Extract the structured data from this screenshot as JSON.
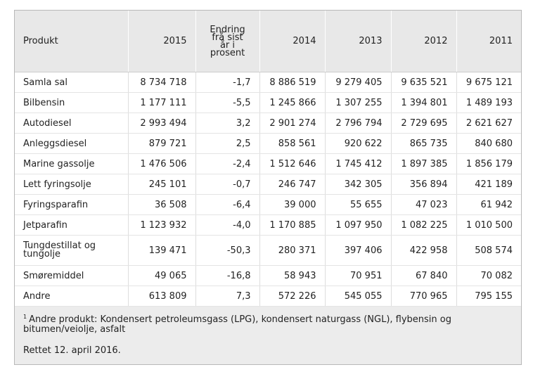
{
  "table": {
    "columns": [
      "Produkt",
      "2015",
      "Endring frå sist år i prosent",
      "2014",
      "2013",
      "2012",
      "2011"
    ],
    "rows": [
      [
        "Samla sal",
        "8 734 718",
        "-1,7",
        "8 886 519",
        "9 279 405",
        "9 635 521",
        "9 675 121"
      ],
      [
        "Bilbensin",
        "1 177 111",
        "-5,5",
        "1 245 866",
        "1 307 255",
        "1 394 801",
        "1 489 193"
      ],
      [
        "Autodiesel",
        "2 993 494",
        "3,2",
        "2 901 274",
        "2 796 794",
        "2 729 695",
        "2 621 627"
      ],
      [
        "Anleggsdiesel",
        "879 721",
        "2,5",
        "858 561",
        "920 622",
        "865 735",
        "840 680"
      ],
      [
        "Marine gassolje",
        "1 476 506",
        "-2,4",
        "1 512 646",
        "1 745 412",
        "1 897 385",
        "1 856 179"
      ],
      [
        "Lett fyringsolje",
        "245 101",
        "-0,7",
        "246 747",
        "342 305",
        "356 894",
        "421 189"
      ],
      [
        "Fyringsparafin",
        "36 508",
        "-6,4",
        "39 000",
        "55 655",
        "47 023",
        "61 942"
      ],
      [
        "Jetparafin",
        "1 123 932",
        "-4,0",
        "1 170 885",
        "1 097 950",
        "1 082 225",
        "1 010 500"
      ],
      [
        "Tungdestillat og tungolje",
        "139 471",
        "-50,3",
        "280 371",
        "397 406",
        "422 958",
        "508 574"
      ],
      [
        "Smøremiddel",
        "49 065",
        "-16,8",
        "58 943",
        "70 951",
        "67 840",
        "70 082"
      ],
      [
        "Andre",
        "613 809",
        "7,3",
        "572 226",
        "545 055",
        "770 965",
        "795 155"
      ]
    ]
  },
  "footnote": {
    "marker": "1",
    "text": "Andre produkt: Kondensert petroleumsgass (LPG), kondensert naturgass (NGL), flybensin og bitumen/veiolje, asfalt"
  },
  "note": "Rettet 12. april 2016."
}
